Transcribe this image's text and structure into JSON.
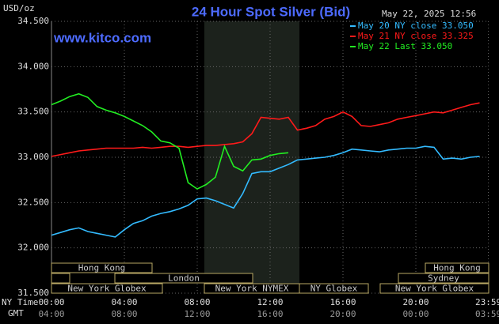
{
  "chart_data": {
    "type": "line",
    "title": "24 Hour Spot Silver (Bid)",
    "unit_label": "USD/oz",
    "date": "May 22, 2025 12:56",
    "watermark": "www.kitco.com",
    "x_row_label": "NY Time",
    "gmt_row_label": "GMT",
    "xlim": [
      0,
      24
    ],
    "xticks": [
      {
        "value": 0,
        "label": "00:00"
      },
      {
        "value": 4,
        "label": "04:00"
      },
      {
        "value": 8,
        "label": "08:00"
      },
      {
        "value": 12,
        "label": "12:00"
      },
      {
        "value": 16,
        "label": "16:00"
      },
      {
        "value": 20,
        "label": "20:00"
      },
      {
        "value": 23.983,
        "label": "23:59"
      }
    ],
    "gmt_ticks": [
      "04:00",
      "08:00",
      "12:00",
      "16:00",
      "20:00",
      "00:00",
      "03:59"
    ],
    "ylim": [
      31.5,
      34.5
    ],
    "yticks": [
      {
        "value": 31.5,
        "label": "31.500"
      },
      {
        "value": 32,
        "label": "32.000"
      },
      {
        "value": 32.5,
        "label": "32.500"
      },
      {
        "value": 33,
        "label": "33.000"
      },
      {
        "value": 33.5,
        "label": "33.500"
      },
      {
        "value": 34,
        "label": "34.000"
      },
      {
        "value": 34.5,
        "label": "34.500"
      }
    ],
    "grid": true,
    "market_sessions": [
      "Hong Kong",
      "Hong Kong",
      "London",
      "Sydney",
      "New York Globex",
      "New York NYMEX",
      "NY Globex",
      "New York Globex"
    ],
    "x": [
      0,
      0.5,
      1,
      1.5,
      2,
      2.5,
      3,
      3.5,
      4,
      4.5,
      5,
      5.5,
      6,
      6.5,
      7,
      7.5,
      8,
      8.5,
      9,
      9.5,
      10,
      10.5,
      11,
      11.5,
      12,
      12.5,
      13,
      13.5,
      14,
      14.5,
      15,
      15.5,
      16,
      16.5,
      17,
      17.5,
      18,
      18.5,
      19,
      19.5,
      20,
      20.5,
      21,
      21.5,
      22,
      22.5,
      23,
      23.5
    ],
    "series": [
      {
        "name": "May 20 NY close 33.050",
        "color": "#33bbff",
        "values": [
          32.14,
          32.17,
          32.2,
          32.22,
          32.18,
          32.16,
          32.14,
          32.12,
          32.2,
          32.27,
          32.3,
          32.35,
          32.38,
          32.4,
          32.43,
          32.47,
          32.54,
          32.55,
          32.52,
          32.48,
          32.44,
          32.6,
          32.82,
          32.84,
          32.84,
          32.88,
          32.92,
          32.97,
          32.98,
          32.99,
          33.0,
          33.02,
          33.05,
          33.09,
          33.08,
          33.07,
          33.06,
          33.08,
          33.09,
          33.1,
          33.1,
          33.12,
          33.11,
          32.98,
          32.99,
          32.98,
          33.0,
          33.01
        ]
      },
      {
        "name": "May 21 NY close 33.325",
        "color": "#ff1a1a",
        "values": [
          33.01,
          33.03,
          33.05,
          33.07,
          33.08,
          33.09,
          33.1,
          33.1,
          33.1,
          33.1,
          33.11,
          33.1,
          33.11,
          33.12,
          33.12,
          33.11,
          33.12,
          33.13,
          33.13,
          33.14,
          33.15,
          33.17,
          33.26,
          33.44,
          33.43,
          33.42,
          33.44,
          33.3,
          33.32,
          33.35,
          33.42,
          33.45,
          33.5,
          33.45,
          33.35,
          33.34,
          33.36,
          33.38,
          33.42,
          33.44,
          33.46,
          33.48,
          33.5,
          33.49,
          33.52,
          33.55,
          33.58,
          33.6
        ]
      },
      {
        "name": "May 22 Last 33.050",
        "color": "#22ee22",
        "values": [
          33.58,
          33.62,
          33.67,
          33.7,
          33.66,
          33.56,
          33.52,
          33.49,
          33.45,
          33.4,
          33.35,
          33.28,
          33.18,
          33.16,
          33.1,
          32.72,
          32.65,
          32.7,
          32.78,
          33.12,
          32.9,
          32.85,
          32.97,
          32.98,
          33.02,
          33.04,
          33.05,
          null,
          null,
          null,
          null,
          null,
          null,
          null,
          null,
          null,
          null,
          null,
          null,
          null,
          null,
          null,
          null,
          null,
          null,
          null,
          null,
          null
        ]
      }
    ]
  }
}
